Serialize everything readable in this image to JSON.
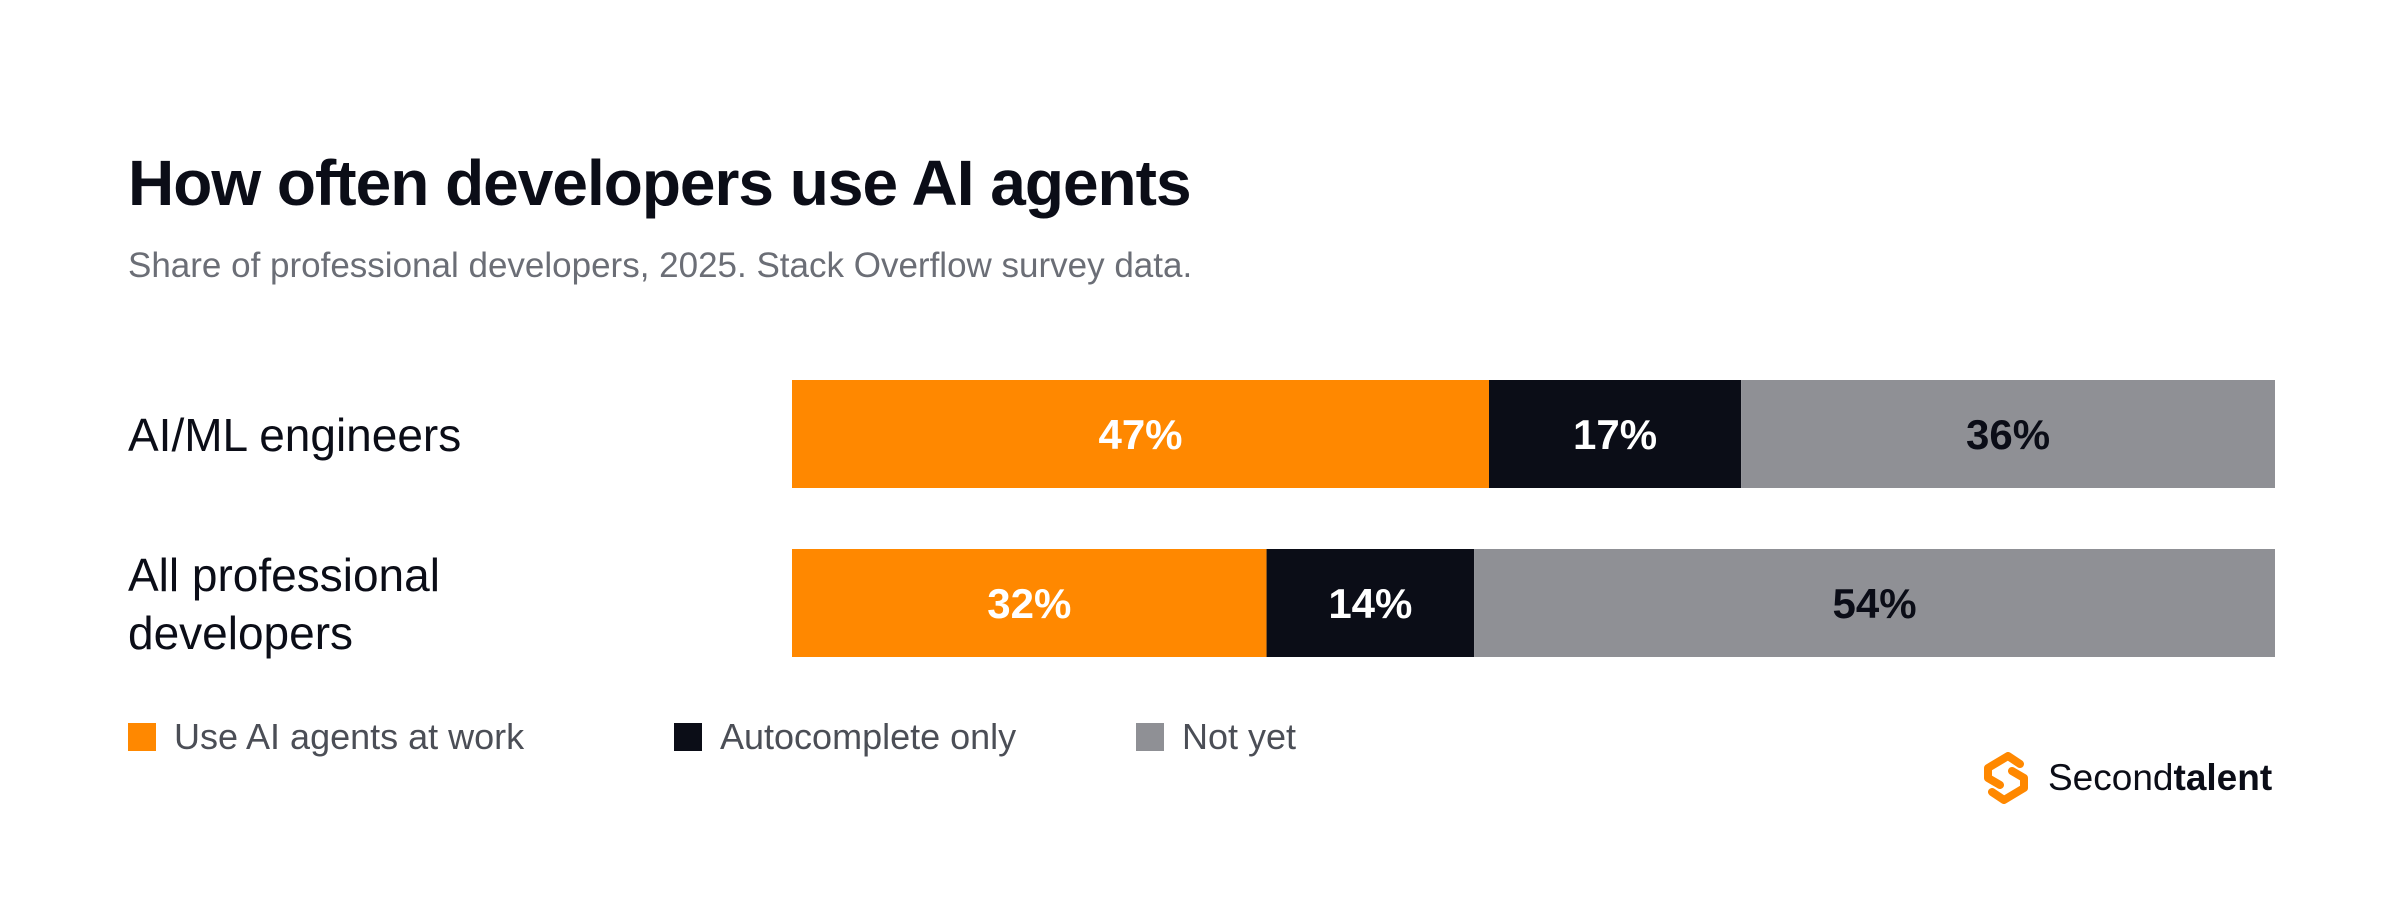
{
  "title": "How often developers use AI agents",
  "subtitle": "Share of professional developers, 2025. Stack Overflow survey data.",
  "brand": {
    "name_light": "Second",
    "name_bold": "talent",
    "icon": "secondtalent-logo-icon"
  },
  "colors": {
    "agents": "#ff8800",
    "autocomplete": "#0b0d17",
    "not_yet": "#8f9095"
  },
  "legend": [
    {
      "label": "Use AI agents at work",
      "color": "#ff8800"
    },
    {
      "label": "Autocomplete only",
      "color": "#0b0d17"
    },
    {
      "label": "Not yet",
      "color": "#8f9095"
    }
  ],
  "chart_data": {
    "type": "bar",
    "orientation": "horizontal",
    "stacked": true,
    "title": "How often developers use AI agents",
    "subtitle": "Share of professional developers, 2025. Stack Overflow survey data.",
    "categories": [
      "AI/ML engineers",
      "All professional developers"
    ],
    "series": [
      {
        "name": "Use AI agents at work",
        "values": [
          47,
          32
        ],
        "labels": [
          "47%",
          "32%"
        ],
        "color": "#ff8800",
        "label_color": "#ffffff"
      },
      {
        "name": "Autocomplete only",
        "values": [
          17,
          14
        ],
        "labels": [
          "17%",
          "14%"
        ],
        "color": "#0b0d17",
        "label_color": "#ffffff"
      },
      {
        "name": "Not yet",
        "values": [
          36,
          54
        ],
        "labels": [
          "36%",
          "54%"
        ],
        "color": "#8f9095",
        "label_color": "#0b0d17"
      }
    ],
    "xlim": [
      0,
      100
    ],
    "grid": false,
    "legend_position": "bottom-left"
  }
}
